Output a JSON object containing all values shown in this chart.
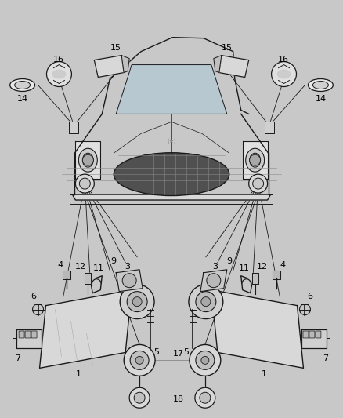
{
  "background_color": "#c8c8c8",
  "line_color": "#1a1a1a",
  "text_color": "#000000",
  "fig_width": 4.38,
  "fig_height": 5.33,
  "dpi": 100
}
